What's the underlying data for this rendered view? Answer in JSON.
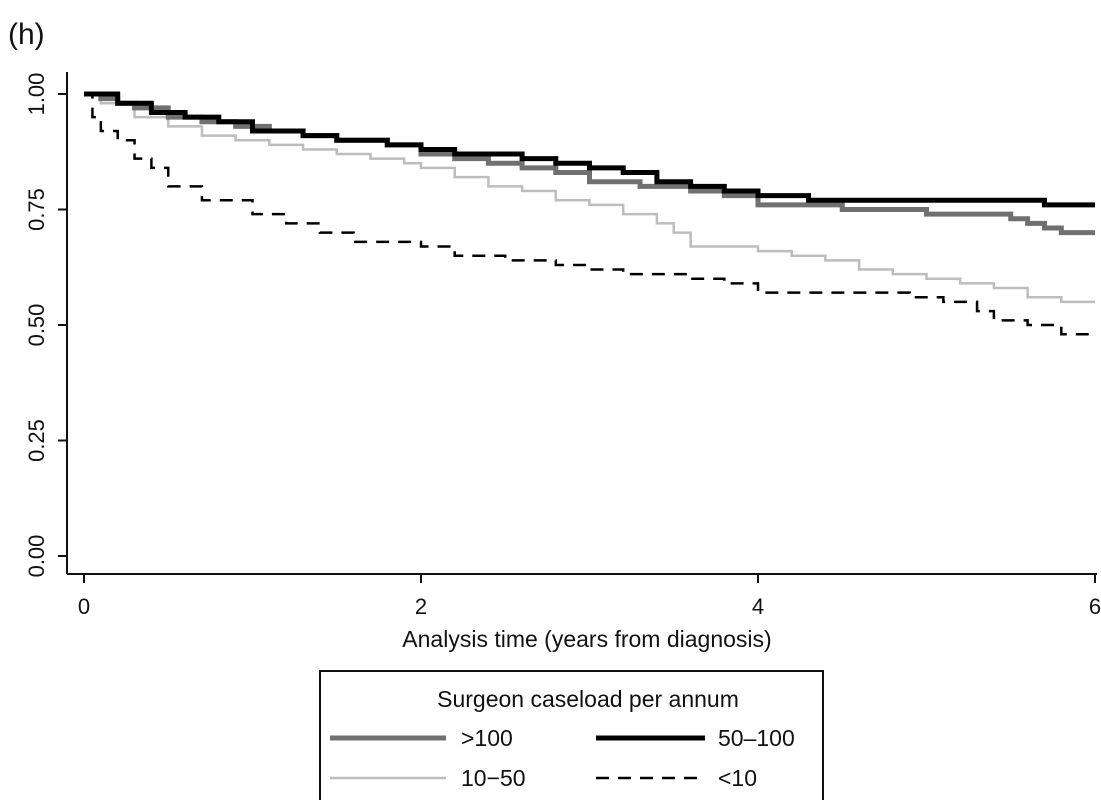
{
  "panel_label": "(h)",
  "chart_data": {
    "type": "line",
    "step": true,
    "title": "",
    "xlabel": "Analysis time (years from diagnosis)",
    "ylabel": "",
    "xlim": [
      0,
      6
    ],
    "ylim": [
      0,
      1
    ],
    "xticks": [
      0,
      2,
      4,
      6
    ],
    "xtick_labels": [
      "0",
      "2",
      "4",
      "6"
    ],
    "yticks": [
      0,
      0.25,
      0.5,
      0.75,
      1
    ],
    "ytick_labels": [
      "0.00",
      "0.25",
      "0.50",
      "0.75",
      "1.00"
    ],
    "grid": false,
    "legend": {
      "title": "Surgeon caseload per annum",
      "position": "bottom",
      "columns": 2
    },
    "series": [
      {
        "name": ">100",
        "color": "#707070",
        "style": "solid",
        "width": 5,
        "x": [
          0,
          0.1,
          0.2,
          0.3,
          0.5,
          0.7,
          0.9,
          1.1,
          1.3,
          1.5,
          1.8,
          2.0,
          2.2,
          2.4,
          2.6,
          2.8,
          3.0,
          3.3,
          3.6,
          3.8,
          4.0,
          4.2,
          4.5,
          4.8,
          5.0,
          5.3,
          5.5,
          5.6,
          5.7,
          5.8,
          6.0
        ],
        "y": [
          1.0,
          0.99,
          0.98,
          0.97,
          0.95,
          0.94,
          0.93,
          0.92,
          0.91,
          0.9,
          0.89,
          0.87,
          0.86,
          0.85,
          0.84,
          0.83,
          0.81,
          0.8,
          0.79,
          0.78,
          0.76,
          0.76,
          0.75,
          0.75,
          0.74,
          0.74,
          0.73,
          0.72,
          0.71,
          0.7,
          0.7
        ]
      },
      {
        "name": "50–100",
        "color": "#000000",
        "style": "solid",
        "width": 5,
        "x": [
          0,
          0.2,
          0.4,
          0.6,
          0.8,
          1.0,
          1.3,
          1.5,
          1.8,
          2.0,
          2.2,
          2.4,
          2.6,
          2.8,
          3.0,
          3.2,
          3.4,
          3.6,
          3.8,
          4.0,
          4.3,
          4.6,
          5.0,
          5.4,
          5.7,
          6.0
        ],
        "y": [
          1.0,
          0.98,
          0.96,
          0.95,
          0.94,
          0.92,
          0.91,
          0.9,
          0.89,
          0.88,
          0.87,
          0.87,
          0.86,
          0.85,
          0.84,
          0.83,
          0.81,
          0.8,
          0.79,
          0.78,
          0.77,
          0.77,
          0.77,
          0.77,
          0.76,
          0.76
        ]
      },
      {
        "name": "10−50",
        "color": "#bdbdbd",
        "style": "solid",
        "width": 2.5,
        "x": [
          0,
          0.1,
          0.3,
          0.5,
          0.7,
          0.9,
          1.1,
          1.3,
          1.5,
          1.7,
          1.9,
          2.0,
          2.2,
          2.4,
          2.6,
          2.8,
          3.0,
          3.2,
          3.4,
          3.5,
          3.6,
          3.8,
          4.0,
          4.2,
          4.4,
          4.6,
          4.8,
          5.0,
          5.2,
          5.4,
          5.6,
          5.8,
          6.0
        ],
        "y": [
          1.0,
          0.98,
          0.95,
          0.93,
          0.91,
          0.9,
          0.89,
          0.88,
          0.87,
          0.86,
          0.85,
          0.84,
          0.82,
          0.8,
          0.79,
          0.77,
          0.76,
          0.74,
          0.72,
          0.7,
          0.67,
          0.67,
          0.66,
          0.65,
          0.64,
          0.62,
          0.61,
          0.6,
          0.59,
          0.58,
          0.56,
          0.55,
          0.55
        ]
      },
      {
        "name": "<10",
        "color": "#000000",
        "style": "dashed",
        "width": 2.5,
        "x": [
          0,
          0.05,
          0.1,
          0.2,
          0.3,
          0.4,
          0.5,
          0.7,
          1.0,
          1.2,
          1.4,
          1.6,
          1.8,
          2.0,
          2.2,
          2.5,
          2.8,
          3.0,
          3.2,
          3.4,
          3.6,
          3.8,
          4.0,
          4.3,
          4.6,
          4.9,
          5.1,
          5.3,
          5.4,
          5.5,
          5.6,
          5.8,
          6.0
        ],
        "y": [
          1.0,
          0.95,
          0.92,
          0.9,
          0.86,
          0.84,
          0.8,
          0.77,
          0.74,
          0.72,
          0.7,
          0.68,
          0.68,
          0.67,
          0.65,
          0.64,
          0.63,
          0.62,
          0.61,
          0.61,
          0.6,
          0.59,
          0.57,
          0.57,
          0.57,
          0.56,
          0.55,
          0.53,
          0.51,
          0.51,
          0.5,
          0.48,
          0.48
        ]
      }
    ]
  }
}
